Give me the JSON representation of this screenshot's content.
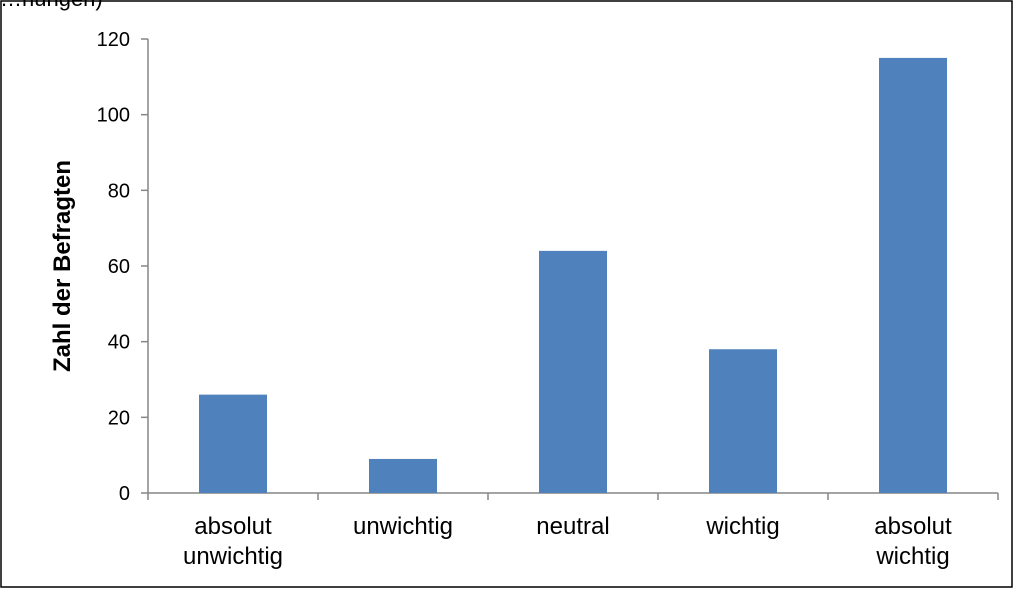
{
  "partial_top_text": "…nungen)",
  "colors": {
    "bar": "#4f81bd",
    "axis": "#868686",
    "frame": "#000000"
  },
  "chart_data": {
    "type": "bar",
    "title": "",
    "xlabel": "",
    "ylabel": "Zahl der Befragten",
    "categories": [
      [
        "absolut",
        "unwichtig"
      ],
      [
        "unwichtig"
      ],
      [
        "neutral"
      ],
      [
        "wichtig"
      ],
      [
        "absolut",
        "wichtig"
      ]
    ],
    "values": [
      26,
      9,
      64,
      38,
      115
    ],
    "ylim": [
      0,
      120
    ],
    "yticks": [
      "0",
      "20",
      "40",
      "60",
      "80",
      "100",
      "120"
    ],
    "grid": false,
    "legend": "none"
  }
}
